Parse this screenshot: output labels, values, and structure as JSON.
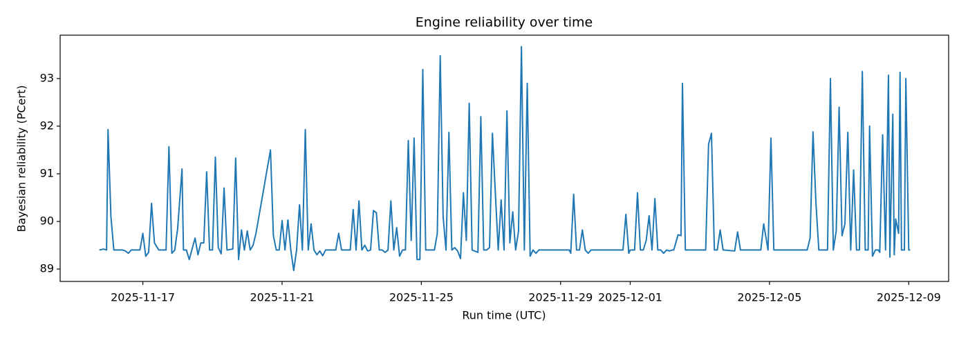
{
  "chart_data": {
    "type": "line",
    "title": "Engine reliability over time",
    "x_label": "Run time (UTC)",
    "y_label": "Bayesian reliability (PCert)",
    "xlim": [
      "2025-11-14T15:00",
      "2025-12-10T03:30"
    ],
    "xticks": [
      "2025-11-17",
      "2025-11-21",
      "2025-11-25",
      "2025-11-29",
      "2025-12-01",
      "2025-12-05",
      "2025-12-09"
    ],
    "ylim": [
      88.74,
      93.91
    ],
    "yticks": [
      89,
      90,
      91,
      92,
      93
    ],
    "grid": false,
    "x": [
      "2025-11-15T18:00",
      "2025-11-15T21:00",
      "2025-11-15T23:00",
      "2025-11-16T00:00",
      "2025-11-16T02:00",
      "2025-11-16T04:00",
      "2025-11-16T10:00",
      "2025-11-16T12:00",
      "2025-11-16T14:00",
      "2025-11-16T16:00",
      "2025-11-16T22:00",
      "2025-11-17T00:00",
      "2025-11-17T02:00",
      "2025-11-17T04:00",
      "2025-11-17T06:00",
      "2025-11-17T08:00",
      "2025-11-17T11:00",
      "2025-11-17T16:00",
      "2025-11-17T18:00",
      "2025-11-17T20:00",
      "2025-11-17T22:00",
      "2025-11-18T00:00",
      "2025-11-18T03:00",
      "2025-11-18T04:00",
      "2025-11-18T06:00",
      "2025-11-18T08:00",
      "2025-11-18T12:00",
      "2025-11-18T14:00",
      "2025-11-18T16:00",
      "2025-11-18T18:00",
      "2025-11-18T20:00",
      "2025-11-18T22:00",
      "2025-11-19T00:00",
      "2025-11-19T02:00",
      "2025-11-19T04:00",
      "2025-11-19T06:00",
      "2025-11-19T08:00",
      "2025-11-19T10:00",
      "2025-11-19T14:00",
      "2025-11-19T16:00",
      "2025-11-19T18:00",
      "2025-11-19T20:00",
      "2025-11-19T22:00",
      "2025-11-20T00:00",
      "2025-11-20T02:00",
      "2025-11-20T04:00",
      "2025-11-20T06:00",
      "2025-11-20T16:00",
      "2025-11-20T18:00",
      "2025-11-20T20:00",
      "2025-11-20T22:00",
      "2025-11-21T00:00",
      "2025-11-21T02:00",
      "2025-11-21T04:00",
      "2025-11-21T06:00",
      "2025-11-21T08:00",
      "2025-11-21T10:00",
      "2025-11-21T12:00",
      "2025-11-21T14:00",
      "2025-11-21T16:00",
      "2025-11-21T18:00",
      "2025-11-21T20:00",
      "2025-11-21T22:00",
      "2025-11-22T00:00",
      "2025-11-22T02:00",
      "2025-11-22T04:00",
      "2025-11-22T06:00",
      "2025-11-22T13:00",
      "2025-11-22T15:00",
      "2025-11-22T17:00",
      "2025-11-22T23:00",
      "2025-11-23T01:00",
      "2025-11-23T03:00",
      "2025-11-23T05:00",
      "2025-11-23T07:00",
      "2025-11-23T09:00",
      "2025-11-23T11:00",
      "2025-11-23T13:00",
      "2025-11-23T15:00",
      "2025-11-23T17:00",
      "2025-11-23T19:00",
      "2025-11-23T21:00",
      "2025-11-23T23:00",
      "2025-11-24T01:00",
      "2025-11-24T03:00",
      "2025-11-24T05:00",
      "2025-11-24T07:00",
      "2025-11-24T09:00",
      "2025-11-24T11:00",
      "2025-11-24T13:00",
      "2025-11-24T15:00",
      "2025-11-24T17:00",
      "2025-11-24T19:00",
      "2025-11-24T21:00",
      "2025-11-24T23:00",
      "2025-11-25T01:00",
      "2025-11-25T03:00",
      "2025-11-25T09:00",
      "2025-11-25T11:00",
      "2025-11-25T13:00",
      "2025-11-25T15:00",
      "2025-11-25T17:00",
      "2025-11-25T19:00",
      "2025-11-25T21:00",
      "2025-11-25T23:00",
      "2025-11-26T01:00",
      "2025-11-26T03:00",
      "2025-11-26T05:00",
      "2025-11-26T07:00",
      "2025-11-26T09:00",
      "2025-11-26T11:00",
      "2025-11-26T15:00",
      "2025-11-26T17:00",
      "2025-11-26T19:00",
      "2025-11-26T21:00",
      "2025-11-26T23:00",
      "2025-11-27T01:00",
      "2025-11-27T03:00",
      "2025-11-27T05:00",
      "2025-11-27T07:00",
      "2025-11-27T09:00",
      "2025-11-27T11:00",
      "2025-11-27T13:00",
      "2025-11-27T15:00",
      "2025-11-27T17:00",
      "2025-11-27T19:00",
      "2025-11-27T21:00",
      "2025-11-27T23:00",
      "2025-11-28T01:00",
      "2025-11-28T03:00",
      "2025-11-28T05:00",
      "2025-11-28T07:00",
      "2025-11-28T09:00",
      "2025-11-28T13:00",
      "2025-11-29T06:00",
      "2025-11-29T07:00",
      "2025-11-29T09:00",
      "2025-11-29T11:00",
      "2025-11-29T13:00",
      "2025-11-29T15:00",
      "2025-11-29T17:00",
      "2025-11-29T19:00",
      "2025-11-29T21:00",
      "2025-11-30T19:00",
      "2025-11-30T21:00",
      "2025-11-30T23:00",
      "2025-12-01T00:00",
      "2025-12-01T03:00",
      "2025-12-01T05:00",
      "2025-12-01T07:00",
      "2025-12-01T09:00",
      "2025-12-01T11:00",
      "2025-12-01T13:00",
      "2025-12-01T15:00",
      "2025-12-01T17:00",
      "2025-12-01T19:00",
      "2025-12-01T21:00",
      "2025-12-01T23:00",
      "2025-12-02T01:00",
      "2025-12-02T03:00",
      "2025-12-02T05:00",
      "2025-12-02T06:00",
      "2025-12-02T09:00",
      "2025-12-02T11:00",
      "2025-12-02T12:00",
      "2025-12-02T14:00",
      "2025-12-03T00:00",
      "2025-12-03T02:00",
      "2025-12-03T04:00",
      "2025-12-03T06:00",
      "2025-12-03T08:00",
      "2025-12-03T10:00",
      "2025-12-03T12:00",
      "2025-12-03T14:00",
      "2025-12-03T16:00",
      "2025-12-04T00:00",
      "2025-12-04T02:00",
      "2025-12-04T04:00",
      "2025-12-04T18:00",
      "2025-12-04T20:00",
      "2025-12-04T23:00",
      "2025-12-05T01:00",
      "2025-12-05T03:00",
      "2025-12-05T05:00",
      "2025-12-05T22:00",
      "2025-12-06T02:00",
      "2025-12-06T04:00",
      "2025-12-06T06:00",
      "2025-12-06T08:00",
      "2025-12-06T10:00",
      "2025-12-06T16:00",
      "2025-12-06T18:00",
      "2025-12-06T20:00",
      "2025-12-06T22:00",
      "2025-12-07T00:00",
      "2025-12-07T02:00",
      "2025-12-07T04:00",
      "2025-12-07T06:00",
      "2025-12-07T08:00",
      "2025-12-07T10:00",
      "2025-12-07T12:00",
      "2025-12-07T14:00",
      "2025-12-07T16:00",
      "2025-12-07T18:00",
      "2025-12-07T20:00",
      "2025-12-07T21:00",
      "2025-12-07T23:00",
      "2025-12-08T01:00",
      "2025-12-08T03:00",
      "2025-12-08T04:00",
      "2025-12-08T06:00",
      "2025-12-08T08:00",
      "2025-12-08T10:00",
      "2025-12-08T11:00",
      "2025-12-08T13:00",
      "2025-12-08T14:00",
      "2025-12-08T15:00",
      "2025-12-08T17:00",
      "2025-12-08T18:00",
      "2025-12-08T19:00",
      "2025-12-08T21:00",
      "2025-12-08T22:00",
      "2025-12-09T00:00",
      "2025-12-09T01:00"
    ],
    "series": [
      {
        "color": "#1f77b4",
        "values": [
          89.4,
          89.42,
          89.4,
          91.93,
          90.1,
          89.4,
          89.4,
          89.38,
          89.33,
          89.4,
          89.4,
          89.75,
          89.27,
          89.35,
          90.38,
          89.55,
          89.4,
          89.4,
          91.57,
          89.33,
          89.4,
          89.85,
          91.1,
          89.4,
          89.4,
          89.2,
          89.65,
          89.3,
          89.55,
          89.55,
          91.04,
          89.4,
          89.4,
          91.35,
          89.45,
          89.32,
          90.7,
          89.4,
          89.42,
          91.33,
          89.2,
          89.82,
          89.4,
          89.8,
          89.4,
          89.5,
          89.75,
          91.5,
          89.7,
          89.4,
          89.4,
          90.02,
          89.4,
          90.03,
          89.4,
          88.97,
          89.4,
          90.35,
          89.4,
          91.93,
          89.4,
          89.95,
          89.4,
          89.3,
          89.38,
          89.28,
          89.4,
          89.4,
          89.75,
          89.4,
          89.4,
          90.25,
          89.4,
          90.43,
          89.4,
          89.5,
          89.38,
          89.4,
          90.23,
          90.18,
          89.4,
          89.4,
          89.35,
          89.4,
          90.43,
          89.4,
          89.87,
          89.27,
          89.4,
          89.4,
          91.7,
          89.6,
          91.75,
          89.2,
          89.2,
          93.19,
          89.4,
          89.4,
          89.75,
          93.48,
          90.1,
          89.4,
          91.87,
          89.4,
          89.45,
          89.38,
          89.22,
          90.6,
          89.6,
          92.48,
          89.4,
          89.35,
          92.2,
          89.4,
          89.4,
          89.45,
          91.85,
          90.6,
          89.4,
          90.45,
          89.4,
          92.32,
          89.55,
          90.2,
          89.4,
          89.8,
          93.67,
          89.4,
          92.9,
          89.27,
          89.4,
          89.33,
          89.4,
          89.4,
          89.4,
          89.33,
          90.57,
          89.4,
          89.4,
          89.82,
          89.4,
          89.33,
          89.4,
          89.4,
          90.15,
          89.33,
          89.4,
          89.4,
          90.6,
          89.4,
          89.4,
          89.6,
          90.12,
          89.4,
          90.48,
          89.4,
          89.4,
          89.33,
          89.4,
          89.38,
          89.4,
          89.4,
          89.72,
          89.7,
          92.9,
          89.4,
          89.4,
          89.4,
          89.4,
          91.62,
          91.85,
          89.4,
          89.4,
          89.82,
          89.4,
          89.38,
          89.78,
          89.4,
          89.4,
          89.95,
          89.4,
          91.75,
          89.4,
          89.4,
          89.4,
          89.4,
          89.65,
          91.88,
          90.4,
          89.4,
          89.4,
          93.0,
          89.4,
          89.8,
          92.4,
          89.7,
          89.95,
          91.87,
          89.4,
          91.08,
          89.4,
          89.4,
          93.15,
          89.4,
          89.4,
          92.0,
          89.27,
          89.4,
          89.4,
          89.35,
          91.82,
          89.4,
          93.07,
          89.25,
          92.25,
          89.3,
          90.05,
          89.75,
          93.13,
          89.4,
          89.4,
          93.0,
          89.4,
          89.4
        ]
      }
    ]
  }
}
